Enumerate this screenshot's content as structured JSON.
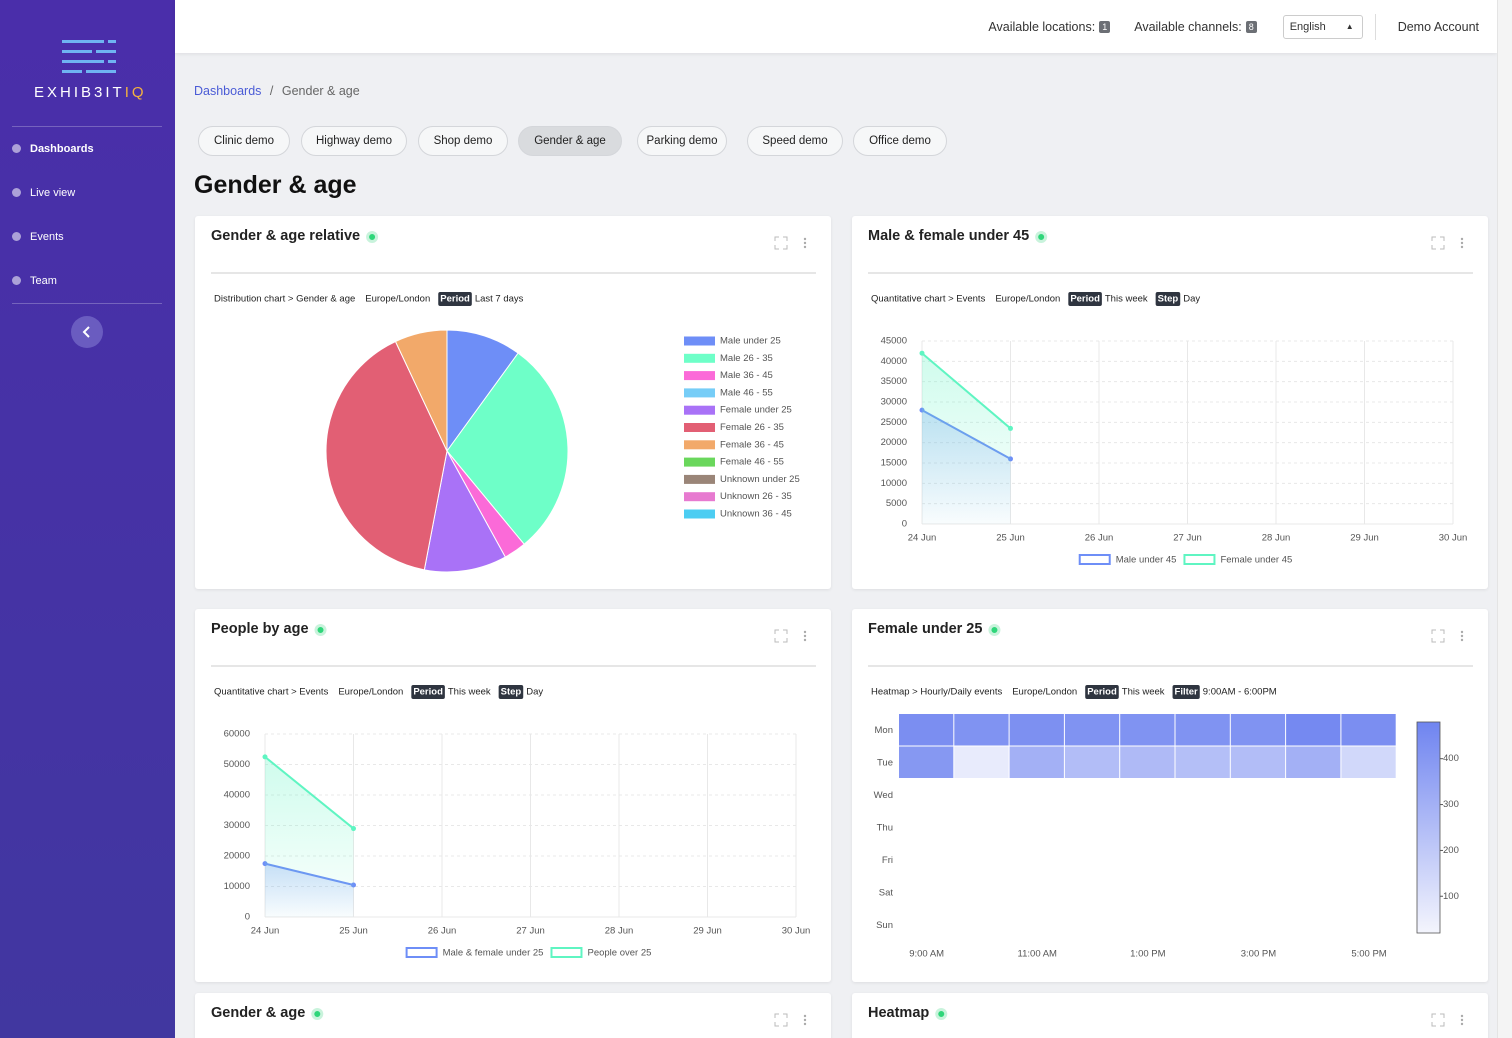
{
  "sidebar": {
    "logo": {
      "main": "EXHIB3IT",
      "accent": "IQ"
    },
    "nav": [
      "Dashboards",
      "Live view",
      "Events",
      "Team"
    ],
    "active": 0
  },
  "header": {
    "locations_label": "Available locations:",
    "locations_count": "1",
    "channels_label": "Available channels:",
    "channels_count": "8",
    "language": "English",
    "account": "Demo Account"
  },
  "breadcrumb": {
    "link": "Dashboards",
    "separator": "/",
    "current": "Gender & age"
  },
  "tabs": {
    "items": [
      "Clinic demo",
      "Highway demo",
      "Shop demo",
      "Gender & age",
      "Parking demo",
      "Speed demo",
      "Office demo"
    ],
    "active": 3
  },
  "page_title": "Gender & age",
  "chart_data": [
    {
      "type": "pie",
      "title": "Gender & age relative",
      "meta": [
        "Distribution chart > Gender & age",
        "Europe/London"
      ],
      "badges": [
        {
          "label": "Period",
          "text": "Last 7 days"
        }
      ],
      "categories": [
        "Male under 25",
        "Male 26 - 35",
        "Male 36 - 45",
        "Male 46 - 55",
        "Female under 25",
        "Female 26 - 35",
        "Female 36 - 45",
        "Female 46 - 55",
        "Unknown under 25",
        "Unknown 26 - 35",
        "Unknown 36 - 45"
      ],
      "values": [
        10,
        29,
        3,
        0,
        11,
        40,
        7,
        0,
        0,
        0,
        0
      ],
      "colors": [
        "#6e8ef7",
        "#6effc8",
        "#fb6ad8",
        "#76cdf7",
        "#a972f7",
        "#e25f74",
        "#f2a96a",
        "#6ad75c",
        "#9a8578",
        "#e77ad0",
        "#4ccdf2"
      ]
    },
    {
      "type": "line",
      "title": "Male & female under 45",
      "meta": [
        "Quantitative chart > Events",
        "Europe/London"
      ],
      "badges": [
        {
          "label": "Period",
          "text": "This week"
        },
        {
          "label": "Step",
          "text": "Day"
        }
      ],
      "categories": [
        "24 Jun",
        "25 Jun",
        "26 Jun",
        "27 Jun",
        "28 Jun",
        "29 Jun",
        "30 Jun"
      ],
      "series": [
        {
          "name": "Male under 45",
          "color": "#6e8ef7",
          "values": [
            28000,
            16000,
            null,
            null,
            null,
            null,
            null
          ]
        },
        {
          "name": "Female under 45",
          "color": "#5ff5c2",
          "values": [
            42000,
            23500,
            null,
            null,
            null,
            null,
            null
          ]
        }
      ],
      "ylim": [
        0,
        45000
      ],
      "yticks": [
        0,
        5000,
        10000,
        15000,
        20000,
        25000,
        30000,
        35000,
        40000,
        45000
      ],
      "grid": true
    },
    {
      "type": "line",
      "title": "People by age",
      "meta": [
        "Quantitative chart > Events",
        "Europe/London"
      ],
      "badges": [
        {
          "label": "Period",
          "text": "This week"
        },
        {
          "label": "Step",
          "text": "Day"
        }
      ],
      "categories": [
        "24 Jun",
        "25 Jun",
        "26 Jun",
        "27 Jun",
        "28 Jun",
        "29 Jun",
        "30 Jun"
      ],
      "series": [
        {
          "name": "Male & female under 25",
          "color": "#6e8ef7",
          "values": [
            17500,
            10500,
            null,
            null,
            null,
            null,
            null
          ]
        },
        {
          "name": "People over 25",
          "color": "#5ff5c2",
          "values": [
            52500,
            29000,
            null,
            null,
            null,
            null,
            null
          ]
        }
      ],
      "ylim": [
        0,
        60000
      ],
      "yticks": [
        0,
        10000,
        20000,
        30000,
        40000,
        50000,
        60000
      ],
      "grid": true
    },
    {
      "type": "heatmap",
      "title": "Female under 25",
      "meta": [
        "Heatmap > Hourly/Daily events",
        "Europe/London"
      ],
      "badges": [
        {
          "label": "Period",
          "text": "This week"
        },
        {
          "label": "Filter",
          "text": "9:00AM - 6:00PM"
        }
      ],
      "rows": [
        "Mon",
        "Tue",
        "Wed",
        "Thu",
        "Fri",
        "Sat",
        "Sun"
      ],
      "columns": [
        "9:00 AM",
        null,
        "11:00 AM",
        null,
        "1:00 PM",
        null,
        "3:00 PM",
        null,
        "5:00 PM"
      ],
      "values": [
        [
          440,
          420,
          430,
          420,
          420,
          420,
          420,
          460,
          440
        ],
        [
          400,
          60,
          300,
          250,
          260,
          240,
          250,
          300,
          140
        ],
        [
          null,
          null,
          null,
          null,
          null,
          null,
          null,
          null,
          null
        ],
        [
          null,
          null,
          null,
          null,
          null,
          null,
          null,
          null,
          null
        ],
        [
          null,
          null,
          null,
          null,
          null,
          null,
          null,
          null,
          null
        ],
        [
          null,
          null,
          null,
          null,
          null,
          null,
          null,
          null,
          null
        ],
        [
          null,
          null,
          null,
          null,
          null,
          null,
          null,
          null,
          null
        ]
      ],
      "clim": [
        20,
        480
      ],
      "cticks": [
        100,
        200,
        300,
        400
      ],
      "color_low": "#f4f5fd",
      "color_high": "#6f84f0"
    }
  ],
  "more_cards": [
    "Gender & age",
    "Heatmap"
  ]
}
